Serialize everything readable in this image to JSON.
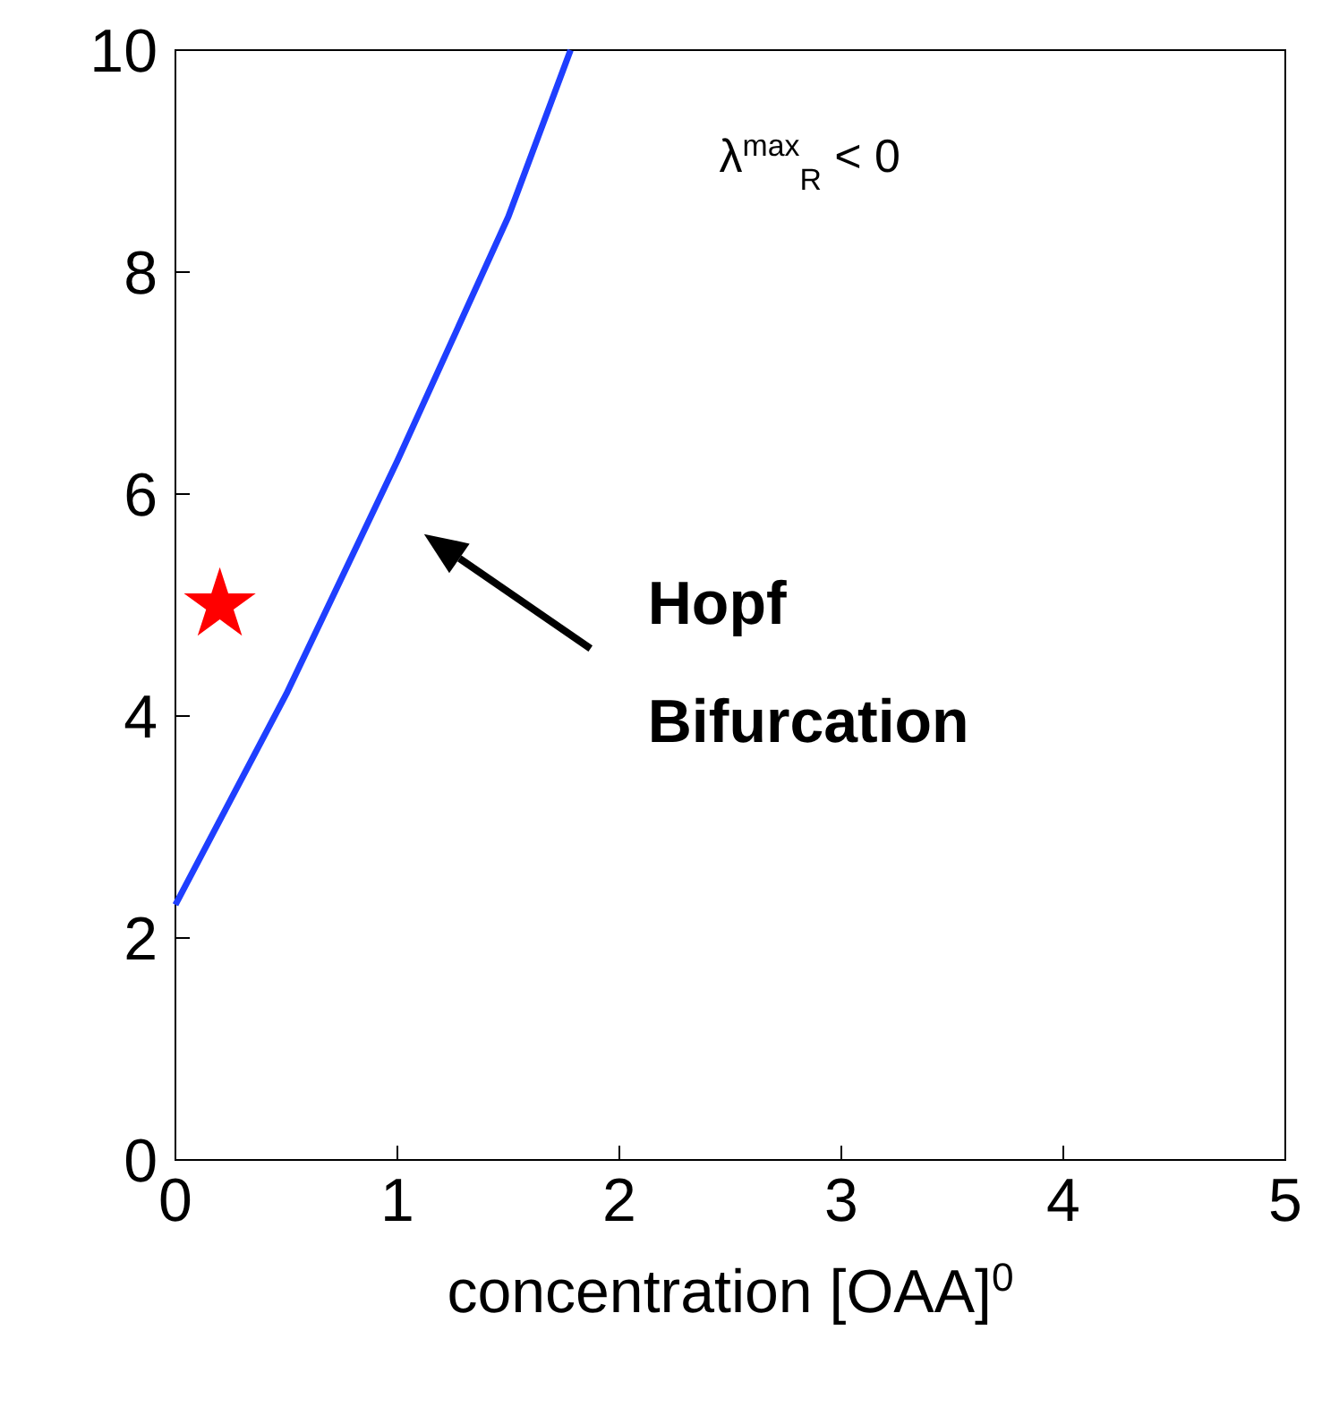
{
  "chart_data": {
    "type": "line",
    "xlabel": "concentration [OAA]$^{0}$",
    "xlim": [
      0,
      5
    ],
    "xticks": [
      0,
      1,
      2,
      3,
      4,
      5
    ],
    "ylim": [
      0,
      10
    ],
    "yticks": [
      0,
      2,
      4,
      6,
      8,
      10
    ],
    "grid": false,
    "series": [
      {
        "color": "#1f3fff",
        "marker": "none",
        "x": [
          0,
          0.5,
          1,
          1.5,
          1.78
        ],
        "values": [
          2.3,
          4.2,
          6.3,
          8.5,
          10
        ]
      },
      {
        "type": "scatter",
        "color": "#ff0000",
        "marker": "star",
        "x": [
          0.2
        ],
        "values": [
          5
        ]
      }
    ],
    "annotations": [
      "λ$^{max}$$_{R}$ < 0",
      "Hopf Bifurcation"
    ]
  }
}
